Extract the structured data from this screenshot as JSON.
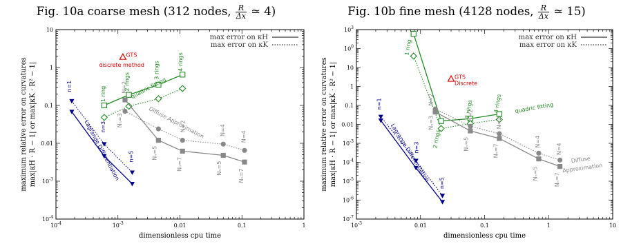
{
  "chart_data": [
    {
      "type": "line",
      "title_prefix": "Fig. 10a coarse mesh (312 nodes,",
      "title_frac_num": "R",
      "title_frac_den": "Δx",
      "title_suffix": "≃ 4)",
      "xlabel": "dimensionless cpu time",
      "ylabel_line1": "maximum relative error on curvatures",
      "ylabel_line2": "max|κH · R − 1|   or   max|κK · R² − 1|",
      "xscale": "log",
      "yscale": "log",
      "xlim": [
        0.0001,
        1
      ],
      "ylim": [
        0.0001,
        10
      ],
      "xtick_labels": [
        {
          "v": 0.0001,
          "t": "10-4"
        },
        {
          "v": 0.001,
          "t": "10-3"
        },
        {
          "v": 0.01,
          "t": "0.01"
        },
        {
          "v": 0.1,
          "t": "0.1"
        },
        {
          "v": 1,
          "t": "1"
        }
      ],
      "ytick_labels": [
        {
          "v": 0.0001,
          "t": "10-4"
        },
        {
          "v": 0.001,
          "t": "10-3"
        },
        {
          "v": 0.01,
          "t": "0.01"
        },
        {
          "v": 0.1,
          "t": "0.1"
        },
        {
          "v": 1,
          "t": "1"
        },
        {
          "v": 10,
          "t": "10"
        }
      ],
      "legend": [
        {
          "label": "max error on κH",
          "style": "solid"
        },
        {
          "label": "max error on κK",
          "style": "dotted"
        }
      ],
      "legend_position": "top-right",
      "series": [
        {
          "color": "#00008b",
          "dash": "solid",
          "marker": "tri-down",
          "points": [
            {
              "x": 0.00018,
              "y": 0.068
            },
            {
              "x": 0.0006,
              "y": 0.0046
            },
            {
              "x": 0.0017,
              "y": 0.00085
            }
          ]
        },
        {
          "color": "#00008b",
          "dash": "dotted",
          "marker": "tri-down",
          "points": [
            {
              "x": 0.00018,
              "y": 0.13
            },
            {
              "x": 0.0006,
              "y": 0.0095
            },
            {
              "x": 0.0017,
              "y": 0.0017
            }
          ]
        },
        {
          "color": "#228b22",
          "dash": "solid",
          "marker": "square-open",
          "points": [
            {
              "x": 0.0006,
              "y": 0.1
            },
            {
              "x": 0.0015,
              "y": 0.19
            },
            {
              "x": 0.0045,
              "y": 0.35
            },
            {
              "x": 0.011,
              "y": 0.65
            }
          ]
        },
        {
          "color": "#228b22",
          "dash": "dotted",
          "marker": "diamond-open",
          "points": [
            {
              "x": 0.0006,
              "y": 0.048
            },
            {
              "x": 0.0015,
              "y": 0.095
            },
            {
              "x": 0.0045,
              "y": 0.15
            },
            {
              "x": 0.011,
              "y": 0.28
            }
          ]
        },
        {
          "color": "#888888",
          "dash": "solid",
          "marker": "square",
          "points": [
            {
              "x": 0.0013,
              "y": 0.14
            },
            {
              "x": 0.0045,
              "y": 0.012
            },
            {
              "x": 0.011,
              "y": 0.0062
            },
            {
              "x": 0.05,
              "y": 0.0048
            },
            {
              "x": 0.11,
              "y": 0.0032
            }
          ]
        },
        {
          "color": "#888888",
          "dash": "dotted",
          "marker": "circle",
          "points": [
            {
              "x": 0.0013,
              "y": 0.07
            },
            {
              "x": 0.0045,
              "y": 0.024
            },
            {
              "x": 0.011,
              "y": 0.012
            },
            {
              "x": 0.05,
              "y": 0.0095
            },
            {
              "x": 0.11,
              "y": 0.0065
            }
          ]
        }
      ],
      "gts": {
        "x": 0.0012,
        "y": 1.9,
        "color": "#e00000"
      },
      "annotations": [
        {
          "text": "GTS",
          "x": 0.00135,
          "y": 1.9,
          "color": "#e00000",
          "size": 9,
          "rot": 0,
          "anchor": "start"
        },
        {
          "text": "discrete method",
          "x": 0.00115,
          "y": 1.05,
          "color": "#e00000",
          "size": 8,
          "rot": 0,
          "anchor": "middle"
        },
        {
          "text": "n=1",
          "x": 0.000175,
          "y": 0.32,
          "color": "#00008b",
          "size": 8,
          "rot": -90,
          "anchor": "middle"
        },
        {
          "text": "n=3",
          "x": 0.00062,
          "y": 0.027,
          "color": "#00008b",
          "size": 8,
          "rot": -90,
          "anchor": "middle"
        },
        {
          "text": "n=5",
          "x": 0.00175,
          "y": 0.0045,
          "color": "#00008b",
          "size": 8,
          "rot": -90,
          "anchor": "middle"
        },
        {
          "text": "Lagrange Differentiation",
          "x": 0.00052,
          "y": 0.0062,
          "color": "#00008b",
          "size": 10,
          "rot": 62,
          "anchor": "middle"
        },
        {
          "text": "1 ring",
          "x": 0.00062,
          "y": 0.2,
          "color": "#228b22",
          "size": 8,
          "rot": -90,
          "anchor": "middle"
        },
        {
          "text": "2 rings",
          "x": 0.0015,
          "y": 0.42,
          "color": "#228b22",
          "size": 8,
          "rot": -90,
          "anchor": "middle"
        },
        {
          "text": "3 rings",
          "x": 0.0045,
          "y": 0.85,
          "color": "#228b22",
          "size": 8,
          "rot": -90,
          "anchor": "middle"
        },
        {
          "text": "4 rings",
          "x": 0.011,
          "y": 1.4,
          "color": "#228b22",
          "size": 8,
          "rot": -90,
          "anchor": "middle"
        },
        {
          "text": "quadric fitting",
          "x": 0.0032,
          "y": 0.26,
          "color": "#228b22",
          "size": 10,
          "rot": -28,
          "anchor": "middle"
        },
        {
          "text": "N=2",
          "x": 0.00135,
          "y": 0.3,
          "color": "#888888",
          "size": 8,
          "rot": -90,
          "anchor": "middle"
        },
        {
          "text": "Nₙ=3",
          "x": 0.00115,
          "y": 0.04,
          "color": "#888888",
          "size": 8,
          "rot": -90,
          "anchor": "middle"
        },
        {
          "text": "Nₙ=5",
          "x": 0.0042,
          "y": 0.0055,
          "color": "#888888",
          "size": 8,
          "rot": -90,
          "anchor": "middle"
        },
        {
          "text": "Nₙ=7",
          "x": 0.0105,
          "y": 0.0028,
          "color": "#888888",
          "size": 8,
          "rot": -90,
          "anchor": "middle"
        },
        {
          "text": "N=2",
          "x": 0.012,
          "y": 0.028,
          "color": "#888888",
          "size": 8,
          "rot": -90,
          "anchor": "middle"
        },
        {
          "text": "Nₙ=5",
          "x": 0.046,
          "y": 0.0022,
          "color": "#888888",
          "size": 8,
          "rot": -90,
          "anchor": "middle"
        },
        {
          "text": "N=4",
          "x": 0.052,
          "y": 0.022,
          "color": "#888888",
          "size": 8,
          "rot": -90,
          "anchor": "middle"
        },
        {
          "text": "Nₙ=7",
          "x": 0.105,
          "y": 0.0014,
          "color": "#888888",
          "size": 8,
          "rot": -90,
          "anchor": "middle"
        },
        {
          "text": "N=4",
          "x": 0.115,
          "y": 0.015,
          "color": "#888888",
          "size": 8,
          "rot": -90,
          "anchor": "middle"
        },
        {
          "text": "Diffuse Approximation",
          "x": 0.0085,
          "y": 0.032,
          "color": "#888888",
          "size": 10,
          "rot": 28,
          "anchor": "middle"
        }
      ]
    },
    {
      "type": "line",
      "title_prefix": "Fig. 10b fine mesh (4128 nodes,",
      "title_frac_num": "R",
      "title_frac_den": "Δx",
      "title_suffix": "≃ 15)",
      "xlabel": "dimensionless cpu time",
      "ylabel_line1": "maximum relative error on curvatures",
      "ylabel_line2": "max|κH · R − 1|   or   max|κK · R² − 1|",
      "xscale": "log",
      "yscale": "log",
      "xlim": [
        0.001,
        10
      ],
      "ylim": [
        1e-07,
        1000
      ],
      "xtick_labels": [
        {
          "v": 0.001,
          "t": "10-3"
        },
        {
          "v": 0.01,
          "t": "0.01"
        },
        {
          "v": 0.1,
          "t": "0.1"
        },
        {
          "v": 1,
          "t": "1"
        },
        {
          "v": 10,
          "t": "10"
        }
      ],
      "ytick_labels": [
        {
          "v": 1e-07,
          "t": "10-7"
        },
        {
          "v": 1e-06,
          "t": "10-6"
        },
        {
          "v": 1e-05,
          "t": "10-5"
        },
        {
          "v": 0.0001,
          "t": "10-4"
        },
        {
          "v": 0.001,
          "t": "10-3"
        },
        {
          "v": 0.01,
          "t": "0.01"
        },
        {
          "v": 0.1,
          "t": "0.1"
        },
        {
          "v": 1,
          "t": "1"
        },
        {
          "v": 10,
          "t": "10"
        },
        {
          "v": 100,
          "t": "100"
        },
        {
          "v": 1000,
          "t": "103"
        }
      ],
      "legend": [
        {
          "label": "max error on κH",
          "style": "solid"
        },
        {
          "label": "max error on κK",
          "style": "dotted"
        }
      ],
      "legend_position": "top-right",
      "series": [
        {
          "color": "#00008b",
          "dash": "solid",
          "marker": "tri-down",
          "points": [
            {
              "x": 0.0024,
              "y": 0.016
            },
            {
              "x": 0.0085,
              "y": 5e-05
            },
            {
              "x": 0.022,
              "y": 8e-07
            }
          ]
        },
        {
          "color": "#00008b",
          "dash": "dotted",
          "marker": "tri-down",
          "points": [
            {
              "x": 0.0024,
              "y": 0.025
            },
            {
              "x": 0.0085,
              "y": 0.00012
            },
            {
              "x": 0.022,
              "y": 1.7e-06
            }
          ]
        },
        {
          "color": "#228b22",
          "dash": "solid",
          "marker": "square-open",
          "points": [
            {
              "x": 0.0078,
              "y": 600
            },
            {
              "x": 0.021,
              "y": 0.015
            },
            {
              "x": 0.06,
              "y": 0.02
            },
            {
              "x": 0.17,
              "y": 0.035
            }
          ]
        },
        {
          "color": "#228b22",
          "dash": "dotted",
          "marker": "diamond-open",
          "points": [
            {
              "x": 0.0078,
              "y": 40
            },
            {
              "x": 0.021,
              "y": 0.006
            },
            {
              "x": 0.06,
              "y": 0.011
            },
            {
              "x": 0.17,
              "y": 0.018
            }
          ]
        },
        {
          "color": "#888888",
          "dash": "solid",
          "marker": "square",
          "points": [
            {
              "x": 0.017,
              "y": 0.045
            },
            {
              "x": 0.06,
              "y": 0.0045
            },
            {
              "x": 0.17,
              "y": 0.0018
            },
            {
              "x": 0.7,
              "y": 0.00015
            },
            {
              "x": 1.5,
              "y": 6e-05
            }
          ]
        },
        {
          "color": "#888888",
          "dash": "dotted",
          "marker": "circle",
          "points": [
            {
              "x": 0.017,
              "y": 0.065
            },
            {
              "x": 0.06,
              "y": 0.008
            },
            {
              "x": 0.17,
              "y": 0.0032
            },
            {
              "x": 0.7,
              "y": 0.0003
            },
            {
              "x": 1.5,
              "y": 0.00013
            }
          ]
        }
      ],
      "gts": {
        "x": 0.03,
        "y": 2.5,
        "color": "#e00000"
      },
      "annotations": [
        {
          "text": "GTS",
          "x": 0.034,
          "y": 2.5,
          "color": "#e00000",
          "size": 9,
          "rot": 0,
          "anchor": "start"
        },
        {
          "text": "Discrete",
          "x": 0.034,
          "y": 1.2,
          "color": "#e00000",
          "size": 8,
          "rot": 0,
          "anchor": "start"
        },
        {
          "text": "1 ring",
          "x": 0.0068,
          "y": 110,
          "color": "#228b22",
          "size": 8,
          "rot": -80,
          "anchor": "middle"
        },
        {
          "text": "2 rings",
          "x": 0.019,
          "y": 0.0016,
          "color": "#228b22",
          "size": 8,
          "rot": -80,
          "anchor": "middle"
        },
        {
          "text": "3 rings",
          "x": 0.06,
          "y": 0.06,
          "color": "#228b22",
          "size": 8,
          "rot": -80,
          "anchor": "middle"
        },
        {
          "text": "4 rings",
          "x": 0.17,
          "y": 0.12,
          "color": "#228b22",
          "size": 8,
          "rot": -80,
          "anchor": "middle"
        },
        {
          "text": "quadric fitting",
          "x": 0.6,
          "y": 0.06,
          "color": "#228b22",
          "size": 10,
          "rot": -10,
          "anchor": "middle"
        },
        {
          "text": "n=1",
          "x": 0.0024,
          "y": 0.12,
          "color": "#00008b",
          "size": 8,
          "rot": -90,
          "anchor": "middle"
        },
        {
          "text": "n=3",
          "x": 0.0092,
          "y": 0.0006,
          "color": "#00008b",
          "size": 8,
          "rot": -90,
          "anchor": "middle"
        },
        {
          "text": "n=5",
          "x": 0.023,
          "y": 8e-06,
          "color": "#00008b",
          "size": 8,
          "rot": -90,
          "anchor": "middle"
        },
        {
          "text": "Lagrange Differentiation",
          "x": 0.0065,
          "y": 0.00028,
          "color": "#00008b",
          "size": 10,
          "rot": 58,
          "anchor": "middle"
        },
        {
          "text": "N=2",
          "x": 0.0155,
          "y": 0.2,
          "color": "#888888",
          "size": 8,
          "rot": -90,
          "anchor": "middle"
        },
        {
          "text": "Nₙ=3",
          "x": 0.0155,
          "y": 0.012,
          "color": "#888888",
          "size": 8,
          "rot": -90,
          "anchor": "middle"
        },
        {
          "text": "N=2",
          "x": 0.064,
          "y": 0.03,
          "color": "#888888",
          "size": 8,
          "rot": -90,
          "anchor": "middle"
        },
        {
          "text": "Nₙ=5",
          "x": 0.055,
          "y": 0.0009,
          "color": "#888888",
          "size": 8,
          "rot": -90,
          "anchor": "middle"
        },
        {
          "text": "N=2",
          "x": 0.18,
          "y": 0.012,
          "color": "#888888",
          "size": 8,
          "rot": -90,
          "anchor": "middle"
        },
        {
          "text": "Nₙ=7",
          "x": 0.16,
          "y": 0.0004,
          "color": "#888888",
          "size": 8,
          "rot": -90,
          "anchor": "middle"
        },
        {
          "text": "N=4",
          "x": 0.72,
          "y": 0.0012,
          "color": "#888888",
          "size": 8,
          "rot": -90,
          "anchor": "middle"
        },
        {
          "text": "Nₙ=5",
          "x": 0.66,
          "y": 2.5e-05,
          "color": "#888888",
          "size": 8,
          "rot": -90,
          "anchor": "middle"
        },
        {
          "text": "N=4",
          "x": 1.55,
          "y": 0.0005,
          "color": "#888888",
          "size": 8,
          "rot": -90,
          "anchor": "middle"
        },
        {
          "text": "Nₙ=7",
          "x": 1.45,
          "y": 1.2e-05,
          "color": "#888888",
          "size": 8,
          "rot": -90,
          "anchor": "middle"
        },
        {
          "text": "Diffuse",
          "x": 3.2,
          "y": 0.00011,
          "color": "#888888",
          "size": 9,
          "rot": -8,
          "anchor": "middle"
        },
        {
          "text": "Approximation",
          "x": 3.4,
          "y": 4e-05,
          "color": "#888888",
          "size": 9,
          "rot": -8,
          "anchor": "middle"
        }
      ]
    }
  ]
}
